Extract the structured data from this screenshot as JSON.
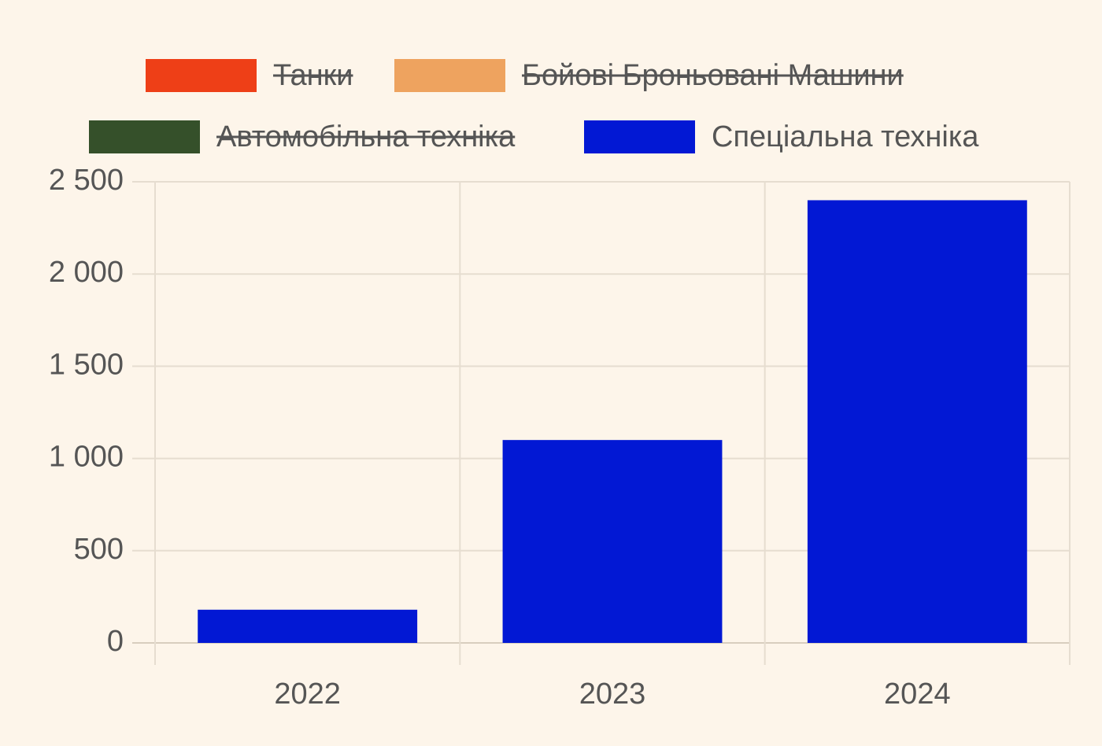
{
  "chart_data": {
    "type": "bar",
    "categories": [
      "2022",
      "2023",
      "2024"
    ],
    "series": [
      {
        "name": "Танки",
        "color": "#ee3f17",
        "hidden": true
      },
      {
        "name": "Бойові Броньовані Машини",
        "color": "#eea35f",
        "hidden": true
      },
      {
        "name": "Автомобільна техніка",
        "color": "#35502a",
        "hidden": true
      },
      {
        "name": "Спеціальна техніка",
        "color": "#0218d4",
        "values": [
          180,
          1100,
          2400
        ]
      }
    ],
    "ylim": [
      0,
      2500
    ],
    "yticks": [
      0,
      500,
      {
        "value": 1000,
        "label": "1 000"
      },
      {
        "value": 1500,
        "label": "1 500"
      },
      {
        "value": 2000,
        "label": "2 000"
      },
      {
        "value": 2500,
        "label": "2 500"
      }
    ],
    "grid": true
  }
}
